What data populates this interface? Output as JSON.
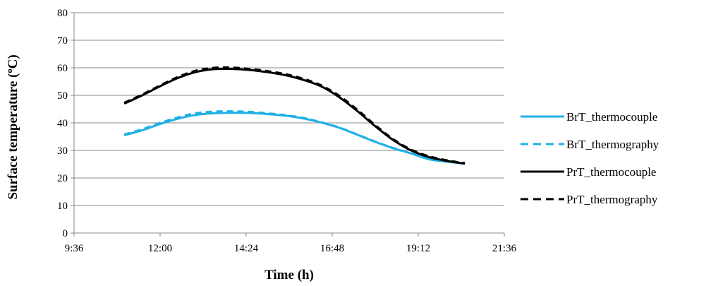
{
  "chart_data": {
    "type": "line",
    "xlabel": "Time (h)",
    "ylabel": "Surface temperature (ºC)",
    "xlim": [
      "9:36",
      "21:36"
    ],
    "ylim": [
      0,
      80
    ],
    "x_ticks": [
      "9:36",
      "12:00",
      "14:24",
      "16:48",
      "19:12",
      "21:36"
    ],
    "y_ticks": [
      "0",
      "10",
      "20",
      "30",
      "40",
      "50",
      "60",
      "70",
      "80"
    ],
    "grid": "horizontal",
    "legend_position": "right",
    "x": [
      "11:00",
      "11:30",
      "12:00",
      "12:30",
      "13:00",
      "13:30",
      "14:00",
      "14:30",
      "15:00",
      "15:30",
      "16:00",
      "16:30",
      "17:00",
      "17:30",
      "18:00",
      "18:30",
      "19:00",
      "19:30",
      "20:00",
      "20:30",
      "21:00"
    ],
    "series": [
      {
        "name": "BrT_thermocouple",
        "color": "#1fb0e6",
        "dash": "solid",
        "values": [
          35.5,
          37.3,
          39.6,
          41.5,
          42.9,
          43.5,
          43.7,
          43.6,
          43.2,
          42.6,
          41.6,
          40.1,
          38.2,
          35.7,
          33.1,
          30.8,
          28.9,
          26.8,
          25.9,
          25.2,
          null
        ]
      },
      {
        "name": "BrT_thermography",
        "color": "#1fb0e6",
        "dash": "dashed",
        "values": [
          35.8,
          37.7,
          40.0,
          42.0,
          43.5,
          44.1,
          44.2,
          44.0,
          43.5,
          42.8,
          41.8,
          40.2,
          38.3,
          35.8,
          33.2,
          30.9,
          29.0,
          27.0,
          26.0,
          25.3,
          null
        ]
      },
      {
        "name": "PrT_thermocouple",
        "color": "#000000",
        "dash": "solid",
        "values": [
          47.0,
          50.0,
          53.3,
          56.3,
          58.5,
          59.5,
          59.6,
          59.2,
          58.4,
          57.3,
          55.6,
          53.2,
          49.3,
          44.3,
          38.8,
          33.8,
          30.0,
          27.6,
          26.2,
          25.2,
          null
        ]
      },
      {
        "name": "PrT_thermography",
        "color": "#000000",
        "dash": "dashed",
        "values": [
          47.3,
          50.3,
          53.6,
          56.7,
          59.0,
          60.0,
          60.1,
          59.6,
          58.8,
          57.7,
          56.0,
          53.6,
          49.8,
          44.8,
          39.2,
          34.1,
          30.3,
          27.9,
          26.4,
          25.4,
          null
        ]
      }
    ]
  }
}
